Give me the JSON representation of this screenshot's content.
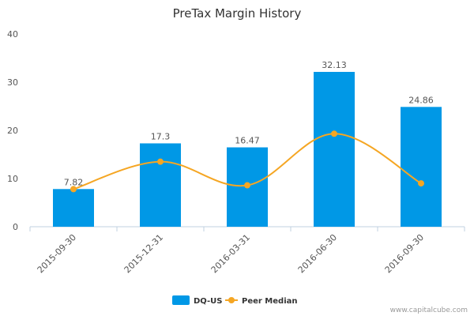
{
  "chart_data": {
    "type": "bar",
    "title": "PreTax Margin History",
    "categories": [
      "2015-09-30",
      "2015-12-31",
      "2016-03-31",
      "2016-06-30",
      "2016-09-30"
    ],
    "ylim": [
      0,
      40
    ],
    "yticks": [
      0,
      10,
      20,
      30,
      40
    ],
    "grid": false,
    "legend_position": "bottom",
    "series": [
      {
        "name": "DQ-US",
        "type": "bar",
        "color": "#0098e6",
        "values": [
          7.82,
          17.3,
          16.47,
          32.13,
          24.86
        ],
        "value_labels": [
          "7.82",
          "17.3",
          "16.47",
          "32.13",
          "24.86"
        ]
      },
      {
        "name": "Peer Median",
        "type": "line",
        "color": "#f5a623",
        "smooth": true,
        "values": [
          7.8,
          13.5,
          8.6,
          19.3,
          9.0
        ]
      }
    ],
    "credit": "www.capitalcube.com"
  }
}
